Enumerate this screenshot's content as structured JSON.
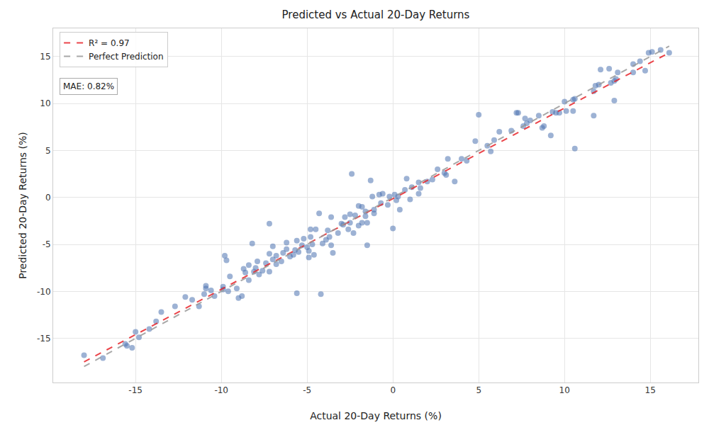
{
  "chart_data": {
    "type": "scatter",
    "title": "Predicted vs Actual 20-Day Returns",
    "x_label": "Actual 20-Day Returns (%)",
    "y_label": "Predicted 20-Day Returns (%)",
    "xlim": [
      -19.8,
      17.8
    ],
    "ylim": [
      -19.7,
      18.0
    ],
    "xticks": [
      -15,
      -10,
      -5,
      0,
      5,
      10,
      15
    ],
    "yticks": [
      -15,
      -10,
      -5,
      0,
      5,
      10,
      15
    ],
    "grid": true,
    "legend": "upper left",
    "annotations": [
      {
        "text": "MAE: 0.82%"
      }
    ],
    "series": [
      {
        "type": "scatter",
        "marker": "circle",
        "color": "#4c72b0",
        "x": [
          16.1,
          15.6,
          15.1,
          14.9,
          14.7,
          14.4,
          14.0,
          14.0,
          13.1,
          13.0,
          12.9,
          12.9,
          12.7,
          12.6,
          12.1,
          12.0,
          11.8,
          11.7,
          11.7,
          10.6,
          10.5,
          10.6,
          10.5,
          10.1,
          10.0,
          9.7,
          9.5,
          9.3,
          9.2,
          8.8,
          8.7,
          8.5,
          8.0,
          7.8,
          7.7,
          7.6,
          7.3,
          7.2,
          6.9,
          6.2,
          5.9,
          5.7,
          5.5,
          5.0,
          4.8,
          4.3,
          4.0,
          3.6,
          3.2,
          3.1,
          3.0,
          2.6,
          2.3,
          2.0,
          1.6,
          1.5,
          1.5,
          1.1,
          1.0,
          0.8,
          0.7,
          0.4,
          0.3,
          0.2,
          0.1,
          0.0,
          -0.2,
          -0.3,
          -0.6,
          -0.7,
          -0.8,
          -1.1,
          -1.1,
          -1.2,
          -1.3,
          -1.5,
          -1.5,
          -1.6,
          -1.6,
          -1.8,
          -1.8,
          -2.0,
          -2.0,
          -2.2,
          -2.3,
          -2.4,
          -2.5,
          -2.5,
          -2.6,
          -2.8,
          -2.9,
          -3.0,
          -3.2,
          -3.5,
          -3.6,
          -3.6,
          -3.7,
          -3.8,
          -3.9,
          -4.1,
          -4.2,
          -4.3,
          -4.5,
          -4.6,
          -4.7,
          -4.8,
          -4.8,
          -4.9,
          -4.9,
          -5.0,
          -5.2,
          -5.3,
          -5.5,
          -5.6,
          -5.6,
          -5.7,
          -5.8,
          -6.0,
          -6.2,
          -6.2,
          -6.4,
          -6.5,
          -6.8,
          -6.8,
          -7.0,
          -7.0,
          -7.2,
          -7.2,
          -7.2,
          -7.4,
          -7.6,
          -7.8,
          -7.9,
          -8.0,
          -8.1,
          -8.2,
          -8.4,
          -8.4,
          -8.6,
          -8.7,
          -8.8,
          -9.0,
          -9.1,
          -9.5,
          -9.6,
          -9.7,
          -9.8,
          -9.9,
          -9.9,
          -10.4,
          -10.6,
          -10.9,
          -10.9,
          -11.0,
          -11.3,
          -11.7,
          -12.1,
          -12.7,
          -13.5,
          -13.8,
          -14.2,
          -14.8,
          -15.0,
          -15.2,
          -15.5,
          -15.6,
          -16.9,
          -18.0
        ],
        "values": [
          15.4,
          15.7,
          15.5,
          15.4,
          13.5,
          14.5,
          13.3,
          14.2,
          13.3,
          12.6,
          12.4,
          10.3,
          12.2,
          13.7,
          13.6,
          12.0,
          11.9,
          11.3,
          8.7,
          10.5,
          10.4,
          5.2,
          9.2,
          9.2,
          10.2,
          9.0,
          9.0,
          9.1,
          6.6,
          7.6,
          7.4,
          8.7,
          8.2,
          7.9,
          8.4,
          7.6,
          9.0,
          9.0,
          7.1,
          7.0,
          6.1,
          4.9,
          5.5,
          8.8,
          6.0,
          3.9,
          4.1,
          1.7,
          4.1,
          2.4,
          2.6,
          3.0,
          1.9,
          1.7,
          1.0,
          1.6,
          0.4,
          1.1,
          -0.2,
          2.0,
          0.8,
          -1.3,
          0.1,
          -0.3,
          0.3,
          -3.3,
          0.1,
          -0.8,
          0.4,
          -0.6,
          0.3,
          -1.7,
          -1.3,
          0.1,
          1.8,
          -5.1,
          -2.7,
          -2.0,
          -1.5,
          -2.7,
          -1.0,
          -3.0,
          -0.9,
          -1.9,
          -3.8,
          2.5,
          -2.7,
          -1.8,
          -3.4,
          -2.1,
          -2.9,
          -2.8,
          -3.8,
          -5.9,
          -5.1,
          -2.1,
          -4.2,
          -3.5,
          -4.5,
          -4.9,
          -10.3,
          -1.7,
          -3.4,
          -6.1,
          -5.0,
          -4.2,
          -3.4,
          -5.7,
          -6.4,
          -5.3,
          -4.4,
          -5.1,
          -5.8,
          -4.6,
          -10.2,
          -5.6,
          -6.1,
          -6.3,
          -4.8,
          -5.5,
          -5.9,
          -6.8,
          -6.2,
          -7.1,
          -6.6,
          -5.2,
          -2.8,
          -6.0,
          -7.9,
          -7.0,
          -7.8,
          -8.2,
          -6.8,
          -7.5,
          -7.9,
          -4.9,
          -7.2,
          -8.8,
          -8.0,
          -7.6,
          -10.5,
          -10.7,
          -9.7,
          -8.4,
          -10.0,
          -6.7,
          -6.2,
          -9.8,
          -9.5,
          -10.5,
          -9.9,
          -9.7,
          -9.4,
          -10.3,
          -11.6,
          -10.9,
          -10.6,
          -11.6,
          -12.2,
          -13.2,
          -14.0,
          -14.9,
          -14.3,
          -16.0,
          -15.8,
          -15.6,
          -17.1,
          -16.8
        ]
      },
      {
        "name": "R² = 0.97",
        "type": "line",
        "line_style": "dashed",
        "color": "#e8242a",
        "x": [
          -18.0,
          16.1
        ],
        "values": [
          -17.5,
          15.4
        ]
      },
      {
        "name": "Perfect Prediction",
        "type": "line",
        "line_style": "dashed",
        "color": "#999999",
        "x": [
          -18.0,
          16.1
        ],
        "values": [
          -18.0,
          16.1
        ]
      }
    ]
  }
}
